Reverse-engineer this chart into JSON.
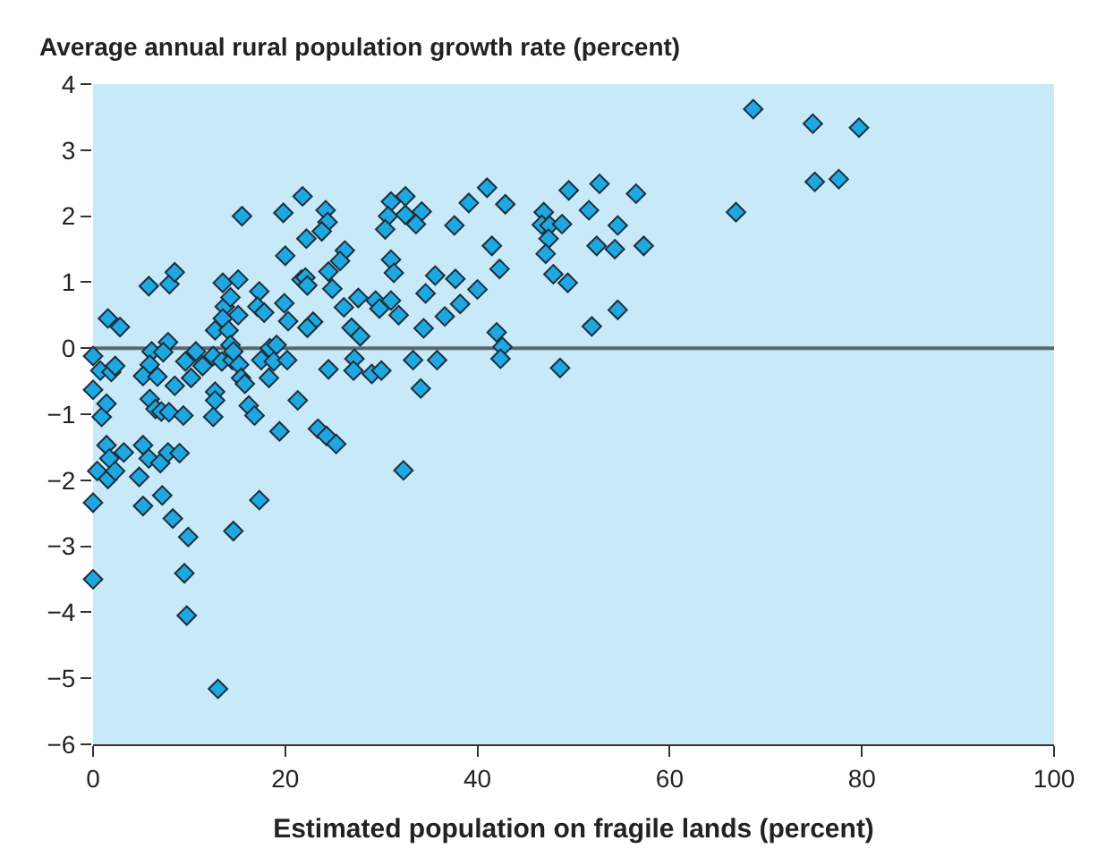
{
  "chart_data": {
    "type": "scatter",
    "ylabel": "Average annual rural population growth rate (percent)",
    "xlabel": "Estimated population on fragile lands (percent)",
    "marker": "diamond",
    "grid": false,
    "xlim": [
      0,
      100
    ],
    "xticks": [
      0,
      20,
      40,
      60,
      80,
      100
    ],
    "ylim": [
      -6,
      4
    ],
    "yticks": [
      {
        "value": -6,
        "label": "−6"
      },
      {
        "value": -5,
        "label": "−5"
      },
      {
        "value": -4,
        "label": "−4"
      },
      {
        "value": -3,
        "label": "−3"
      },
      {
        "value": -2,
        "label": "−2"
      },
      {
        "value": -1,
        "label": "−1"
      },
      0,
      1,
      2,
      3,
      4
    ],
    "ref_lines": [
      {
        "axis": "y",
        "value": 0,
        "color": "#5a6670"
      }
    ],
    "series": [
      {
        "color": "#1ea7e1",
        "x": [
          0,
          0,
          0,
          0,
          0.75,
          0.9,
          1.4,
          1.55,
          2.8,
          1.9,
          2.3,
          1.4,
          0.43,
          1.7,
          1.55,
          2.3,
          3.2,
          5.8,
          7.95,
          8.5,
          6.1,
          5.9,
          5.2,
          6.7,
          7.8,
          7.3,
          8.5,
          5.9,
          6.5,
          7.1,
          7.9,
          9.4,
          5.2,
          5.8,
          7.0,
          7.8,
          9.0,
          4.8,
          5.2,
          7.2,
          8.3,
          9.9,
          9.5,
          9.75,
          13.0,
          14.6,
          17.3,
          19.4,
          9.6,
          10.7,
          10.2,
          11.4,
          12.5,
          13.4,
          12.7,
          12.7,
          12.5,
          14.5,
          15.2,
          15.4,
          15.8,
          16.2,
          16.8,
          12.7,
          13.5,
          15.1,
          13.7,
          14.3,
          13.5,
          14.1,
          15.1,
          14.3,
          14.6,
          17.3,
          17.1,
          17.8,
          17.5,
          18.4,
          19.1,
          18.3,
          18.8,
          20.2,
          21.3,
          20.0,
          19.9,
          20.3,
          21.7,
          15.5,
          19.8,
          21.8,
          24.2,
          24.4,
          23.8,
          22.2,
          26.2,
          25.7,
          24.5,
          22.1,
          22.3,
          24.9,
          26.1,
          27.6,
          29.4,
          29.8,
          31.0,
          31.8,
          22.9,
          22.3,
          26.9,
          27.8,
          31.0,
          32.5,
          30.7,
          32.5,
          34.2,
          33.6,
          30.4,
          31.0,
          31.3,
          35.6,
          37.7,
          34.6,
          40.0,
          38.2,
          36.6,
          34.4,
          37.6,
          39.1,
          41.0,
          42.9,
          41.5,
          42.3,
          42.0,
          42.6,
          42.4,
          24.5,
          27.2,
          27.1,
          29.0,
          30.0,
          33.3,
          35.8,
          34.1,
          23.4,
          24.3,
          25.3,
          32.3,
          49.5,
          52.7,
          56.5,
          66.9,
          46.9,
          46.7,
          47.5,
          48.8,
          47.4,
          47.1,
          51.6,
          54.6,
          52.4,
          54.3,
          57.3,
          47.9,
          49.4,
          54.6,
          51.9,
          48.6,
          68.7,
          74.9,
          79.7,
          75.1,
          77.6
        ],
        "values": [
          -0.12,
          -0.63,
          -2.34,
          -3.5,
          -0.34,
          -1.04,
          -0.84,
          0.45,
          0.32,
          -0.36,
          -0.27,
          -1.47,
          -1.86,
          -1.67,
          -1.98,
          -1.86,
          -1.58,
          0.94,
          0.97,
          1.15,
          -0.05,
          -0.25,
          -0.42,
          -0.43,
          0.09,
          -0.06,
          -0.57,
          -0.77,
          -0.92,
          -0.96,
          -0.97,
          -1.02,
          -1.47,
          -1.67,
          -1.74,
          -1.58,
          -1.59,
          -1.95,
          -2.39,
          -2.23,
          -2.58,
          -2.86,
          -3.41,
          -4.05,
          -5.16,
          -2.77,
          -2.3,
          -1.26,
          -0.2,
          -0.05,
          -0.45,
          -0.27,
          -0.12,
          -0.2,
          -0.66,
          -0.79,
          -1.04,
          -0.18,
          -0.25,
          -0.45,
          -0.54,
          -0.87,
          -1.02,
          0.27,
          0.99,
          1.04,
          0.63,
          0.77,
          0.45,
          0.27,
          0.5,
          0.05,
          -0.05,
          0.86,
          0.63,
          0.54,
          -0.18,
          0,
          0.05,
          -0.45,
          -0.2,
          -0.18,
          -0.79,
          1.4,
          0.68,
          0.41,
          1.04,
          2.0,
          2.05,
          2.3,
          2.09,
          1.91,
          1.77,
          1.66,
          1.48,
          1.32,
          1.16,
          1.07,
          0.95,
          0.9,
          0.62,
          0.76,
          0.72,
          0.6,
          0.72,
          0.5,
          0.4,
          0.31,
          0.31,
          0.18,
          2.22,
          2.3,
          2.0,
          2.02,
          2.07,
          1.88,
          1.8,
          1.34,
          1.14,
          1.1,
          1.05,
          0.83,
          0.89,
          0.67,
          0.48,
          0.3,
          1.86,
          2.2,
          2.43,
          2.18,
          1.55,
          1.2,
          0.24,
          0.02,
          -0.16,
          -0.32,
          -0.16,
          -0.34,
          -0.39,
          -0.34,
          -0.18,
          -0.18,
          -0.61,
          -1.22,
          -1.33,
          -1.45,
          -1.85,
          2.39,
          2.49,
          2.34,
          2.06,
          2.06,
          1.87,
          1.86,
          1.88,
          1.66,
          1.43,
          2.09,
          1.86,
          1.55,
          1.5,
          1.55,
          1.12,
          0.99,
          0.58,
          0.33,
          -0.3,
          3.62,
          3.4,
          3.34,
          2.52,
          2.56
        ]
      }
    ]
  }
}
